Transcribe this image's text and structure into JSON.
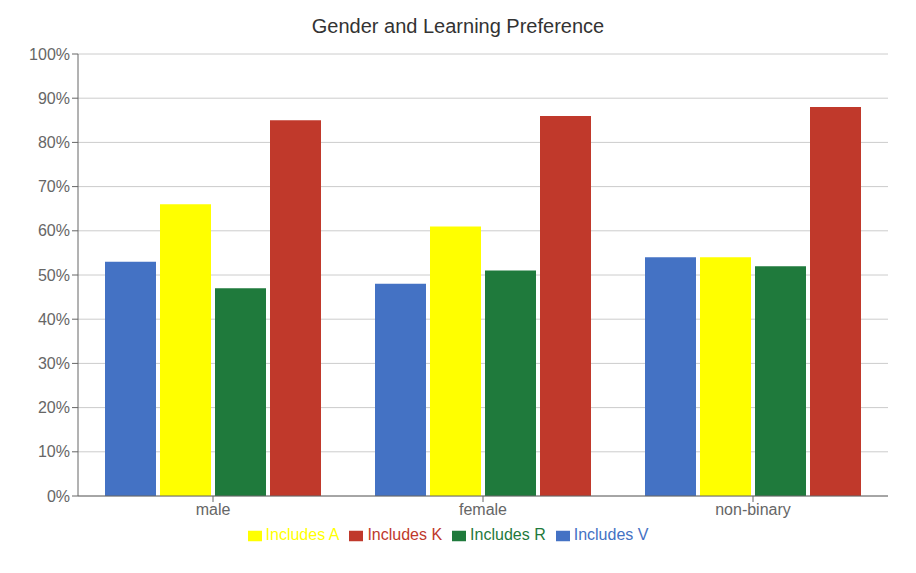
{
  "chart_data": {
    "type": "bar",
    "title": "Gender and Learning Preference",
    "categories": [
      "male",
      "female",
      "non-binary"
    ],
    "series": [
      {
        "name": "Includes V",
        "color": "#4472C4",
        "values": [
          0.53,
          0.48,
          0.54
        ]
      },
      {
        "name": "Includes A",
        "color": "#FFFF00",
        "values": [
          0.66,
          0.61,
          0.54
        ]
      },
      {
        "name": "Includes R",
        "color": "#1F7A3C",
        "values": [
          0.47,
          0.51,
          0.52
        ]
      },
      {
        "name": "Includes K",
        "color": "#C0392B",
        "values": [
          0.85,
          0.86,
          0.88
        ]
      }
    ],
    "ylim": [
      0,
      1.0
    ],
    "yticks": [
      {
        "value": 0.0,
        "label": "0%"
      },
      {
        "value": 0.1,
        "label": "10%"
      },
      {
        "value": 0.2,
        "label": "20%"
      },
      {
        "value": 0.3,
        "label": "30%"
      },
      {
        "value": 0.4,
        "label": "40%"
      },
      {
        "value": 0.5,
        "label": "50%"
      },
      {
        "value": 0.6,
        "label": "60%"
      },
      {
        "value": 0.7,
        "label": "70%"
      },
      {
        "value": 0.8,
        "label": "80%"
      },
      {
        "value": 0.9,
        "label": "90%"
      },
      {
        "value": 1.0,
        "label": "100%"
      }
    ],
    "grid": true,
    "legend": "bottom"
  }
}
